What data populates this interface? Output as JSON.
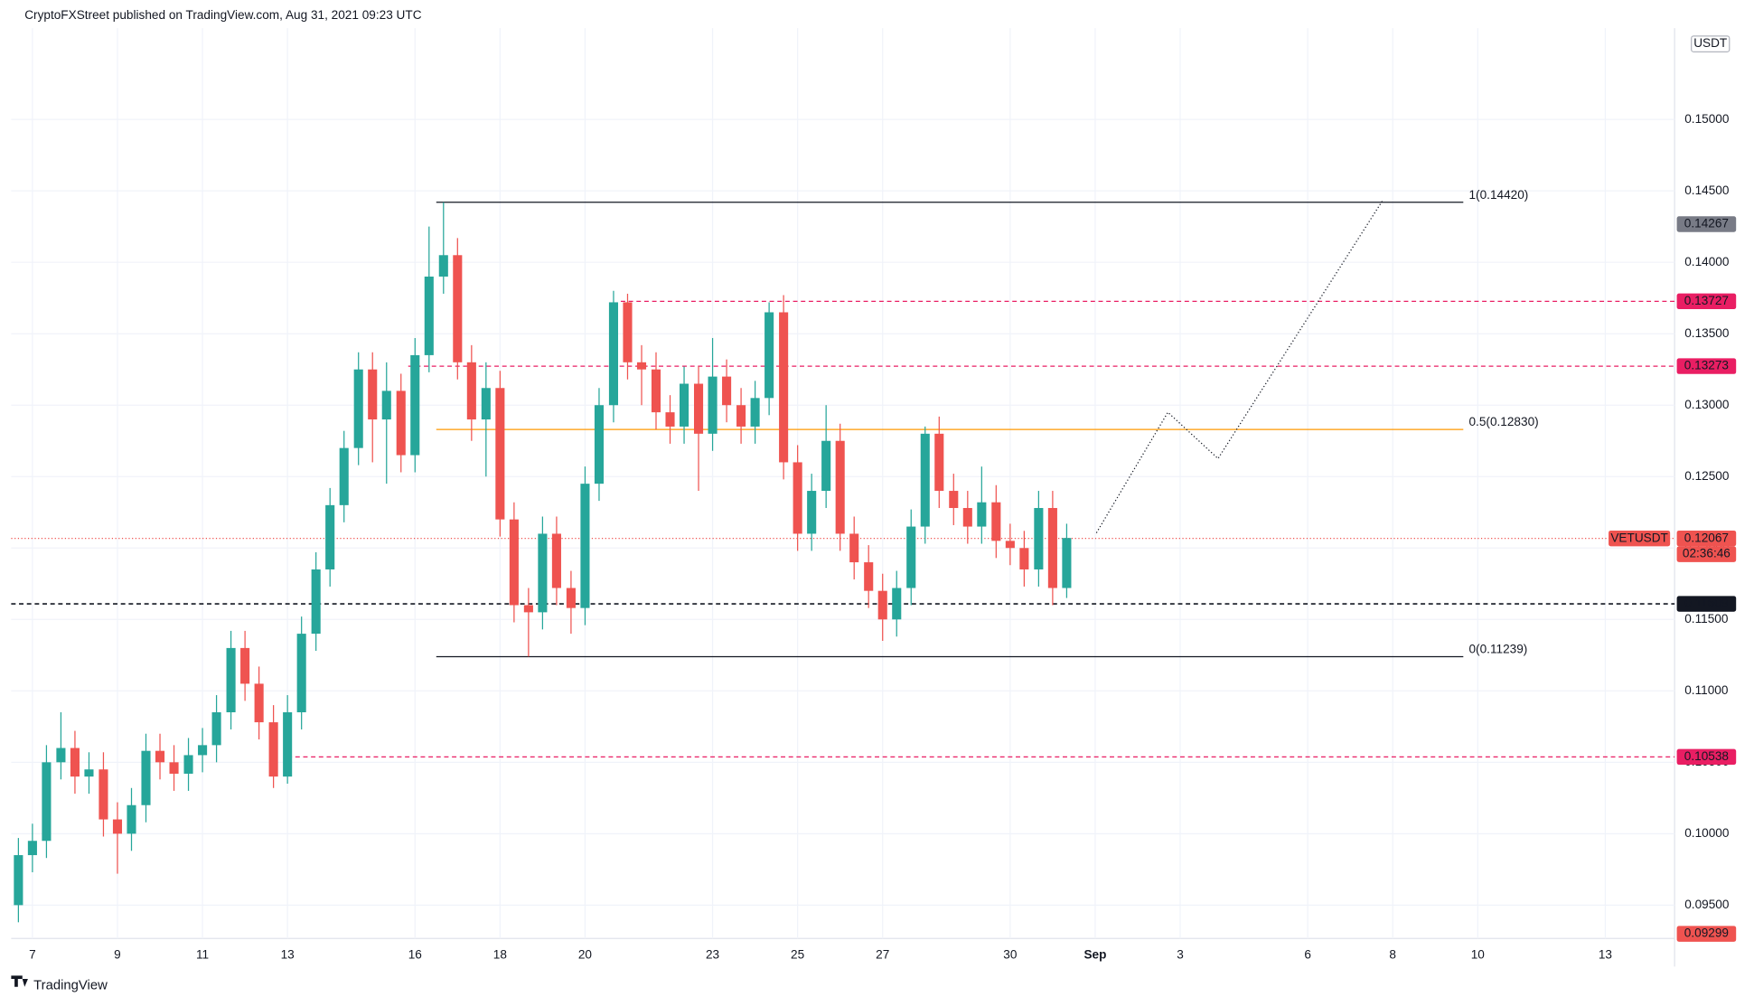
{
  "chart_data": {
    "type": "candlestick",
    "title": "CryptoFXStreet published on TradingView.com, Aug 31, 2021 09:23 UTC",
    "currency": "USDT",
    "brand": "TradingView",
    "symbol": "VETUSDT",
    "countdown": "02:36:46",
    "up_color": "#26a69a",
    "down_color": "#ef5350",
    "grid": true,
    "xlim": [
      6.5,
      45.63
    ],
    "ylim": [
      0.09267,
      0.15639
    ],
    "xticks": [
      7,
      9,
      11,
      13,
      16,
      18,
      20,
      23,
      25,
      27,
      30,
      {
        "value": 32,
        "label": "Sep"
      },
      {
        "value": 34,
        "label": "3"
      },
      {
        "value": 37,
        "label": "6"
      },
      {
        "value": 39,
        "label": "8"
      },
      {
        "value": 41,
        "label": "10"
      },
      {
        "value": 44,
        "label": "13"
      }
    ],
    "yticks": [
      {
        "value": 0.095,
        "label": "0.09500"
      },
      {
        "value": 0.1,
        "label": "0.10000"
      },
      {
        "value": 0.105,
        "label": "0.10500"
      },
      {
        "value": 0.11,
        "label": "0.11000"
      },
      {
        "value": 0.115,
        "label": "0.11500"
      },
      {
        "value": 0.12,
        "label": "0.12000"
      },
      {
        "value": 0.125,
        "label": "0.12500"
      },
      {
        "value": 0.13,
        "label": "0.13000"
      },
      {
        "value": 0.135,
        "label": "0.13500"
      },
      {
        "value": 0.14,
        "label": "0.14000"
      },
      {
        "value": 0.145,
        "label": "0.14500"
      },
      {
        "value": 0.15,
        "label": "0.15000"
      }
    ],
    "x": [
      6.67,
      7,
      7.33,
      7.67,
      8,
      8.33,
      8.67,
      9,
      9.33,
      9.67,
      10,
      10.33,
      10.67,
      11,
      11.33,
      11.67,
      12,
      12.33,
      12.67,
      13,
      13.33,
      13.67,
      14,
      14.33,
      14.67,
      15,
      15.33,
      15.67,
      16,
      16.33,
      16.67,
      17,
      17.33,
      17.67,
      18,
      18.33,
      18.67,
      19,
      19.33,
      19.67,
      20,
      20.33,
      20.67,
      21,
      21.33,
      21.67,
      22,
      22.33,
      22.67,
      23,
      23.33,
      23.67,
      24,
      24.33,
      24.67,
      25,
      25.33,
      25.67,
      26,
      26.33,
      26.67,
      27,
      27.33,
      27.67,
      28,
      28.33,
      28.67,
      29,
      29.33,
      29.67,
      30,
      30.33,
      30.67,
      31,
      31.33
    ],
    "open": [
      0.095,
      0.0985,
      0.0995,
      0.105,
      0.106,
      0.104,
      0.1045,
      0.101,
      0.1,
      0.102,
      0.1058,
      0.105,
      0.1042,
      0.1055,
      0.1062,
      0.1085,
      0.113,
      0.1105,
      0.1078,
      0.104,
      0.1085,
      0.114,
      0.1185,
      0.123,
      0.127,
      0.1325,
      0.129,
      0.131,
      0.1265,
      0.1335,
      0.139,
      0.1405,
      0.133,
      0.129,
      0.1312,
      0.122,
      0.116,
      0.1155,
      0.121,
      0.1172,
      0.1158,
      0.1245,
      0.13,
      0.1372,
      0.133,
      0.1325,
      0.1295,
      0.1285,
      0.1315,
      0.128,
      0.132,
      0.13,
      0.1285,
      0.1305,
      0.1365,
      0.126,
      0.121,
      0.124,
      0.1275,
      0.121,
      0.119,
      0.117,
      0.115,
      0.1172,
      0.1215,
      0.128,
      0.124,
      0.1228,
      0.1215,
      0.1232,
      0.1205,
      0.12,
      0.1185,
      0.1228,
      0.1172
    ],
    "high": [
      0.0997,
      0.1007,
      0.1062,
      0.1085,
      0.1072,
      0.1057,
      0.1057,
      0.1022,
      0.1032,
      0.107,
      0.107,
      0.1062,
      0.1067,
      0.1074,
      0.1097,
      0.1142,
      0.1142,
      0.1117,
      0.109,
      0.1097,
      0.1152,
      0.1197,
      0.1242,
      0.1282,
      0.1337,
      0.1337,
      0.133,
      0.1322,
      0.1347,
      0.1425,
      0.1442,
      0.1417,
      0.1342,
      0.133,
      0.1324,
      0.1232,
      0.1172,
      0.1222,
      0.1222,
      0.1184,
      0.1257,
      0.1312,
      0.138,
      0.1378,
      0.1342,
      0.1337,
      0.1307,
      0.1327,
      0.1327,
      0.1347,
      0.1332,
      0.1312,
      0.1317,
      0.1372,
      0.1377,
      0.1272,
      0.1252,
      0.13,
      0.1287,
      0.1222,
      0.1202,
      0.1182,
      0.1184,
      0.1227,
      0.1285,
      0.1292,
      0.1252,
      0.124,
      0.1257,
      0.1244,
      0.1217,
      0.1212,
      0.124,
      0.124,
      0.1217
    ],
    "low": [
      0.0938,
      0.0973,
      0.0983,
      0.1038,
      0.1028,
      0.1028,
      0.0998,
      0.0972,
      0.0988,
      0.1008,
      0.1038,
      0.103,
      0.103,
      0.1043,
      0.105,
      0.1073,
      0.1093,
      0.1066,
      0.1032,
      0.1035,
      0.1073,
      0.1128,
      0.1173,
      0.1218,
      0.1258,
      0.126,
      0.1245,
      0.1253,
      0.1253,
      0.1323,
      0.1378,
      0.1318,
      0.1275,
      0.125,
      0.1208,
      0.1148,
      0.1124,
      0.1143,
      0.116,
      0.114,
      0.1146,
      0.1233,
      0.1288,
      0.1318,
      0.13,
      0.1283,
      0.1273,
      0.1273,
      0.124,
      0.1268,
      0.1288,
      0.1273,
      0.1273,
      0.1293,
      0.1248,
      0.1198,
      0.1198,
      0.1228,
      0.1198,
      0.1178,
      0.1158,
      0.1135,
      0.1138,
      0.116,
      0.1203,
      0.1228,
      0.1216,
      0.1203,
      0.1203,
      0.1193,
      0.1188,
      0.1173,
      0.1173,
      0.116,
      0.1165
    ],
    "close": [
      0.0985,
      0.0995,
      0.105,
      0.106,
      0.104,
      0.1045,
      0.101,
      0.1,
      0.102,
      0.1058,
      0.105,
      0.1042,
      0.1055,
      0.1062,
      0.1085,
      0.113,
      0.1105,
      0.1078,
      0.104,
      0.1085,
      0.114,
      0.1185,
      0.123,
      0.127,
      0.1325,
      0.129,
      0.131,
      0.1265,
      0.1335,
      0.139,
      0.1405,
      0.133,
      0.129,
      0.1312,
      0.122,
      0.116,
      0.1155,
      0.121,
      0.1172,
      0.1158,
      0.1245,
      0.13,
      0.1372,
      0.133,
      0.1325,
      0.1295,
      0.1285,
      0.1315,
      0.128,
      0.132,
      0.13,
      0.1285,
      0.1305,
      0.1365,
      0.126,
      0.121,
      0.124,
      0.1275,
      0.121,
      0.119,
      0.117,
      0.115,
      0.1172,
      0.1215,
      0.128,
      0.124,
      0.1228,
      0.1215,
      0.1232,
      0.1205,
      0.12,
      0.1185,
      0.1228,
      0.1172,
      0.1207
    ],
    "fib_levels": [
      {
        "label": "1(0.14420)",
        "value": 0.1442,
        "color": "#131722",
        "x_start": 16.5,
        "x_end": 40.66
      },
      {
        "label": "0.5(0.12830)",
        "value": 0.1283,
        "color": "#ff9800",
        "x_start": 16.5,
        "x_end": 40.66
      },
      {
        "label": "0(0.11239)",
        "value": 0.11239,
        "color": "#131722",
        "x_start": 16.5,
        "x_end": 40.66
      }
    ],
    "levels": [
      {
        "value": 0.13727,
        "color": "#e91e63",
        "x_start": 20.84,
        "style": "dashed"
      },
      {
        "value": 0.13273,
        "color": "#e91e63",
        "x_start": 15.84,
        "style": "dashed"
      },
      {
        "value": 0.10538,
        "color": "#e91e63",
        "x_start": 13.0,
        "style": "dashed"
      },
      {
        "value": 0.11609,
        "color": "#131722",
        "x_start": 6.5,
        "style": "dashed"
      },
      {
        "value": 0.12067,
        "color": "#ef5350",
        "x_start": 6.5,
        "style": "dotted"
      }
    ],
    "price_tags": [
      {
        "value": 0.14267,
        "color": "#787b86"
      },
      {
        "value": 0.13727,
        "color": "#e91e63"
      },
      {
        "value": 0.13273,
        "color": "#e91e63"
      },
      {
        "value": 0.12067,
        "color": "#ef5350"
      },
      {
        "value": 0.11609,
        "color": "#131722"
      },
      {
        "value": 0.10538,
        "color": "#e91e63"
      },
      {
        "value": 0.09299,
        "color": "#ef5350"
      }
    ],
    "projection": {
      "x": [
        32.03,
        33.71,
        34.89,
        38.76
      ],
      "y": [
        0.12106,
        0.1295,
        0.12626,
        0.14432
      ]
    }
  }
}
